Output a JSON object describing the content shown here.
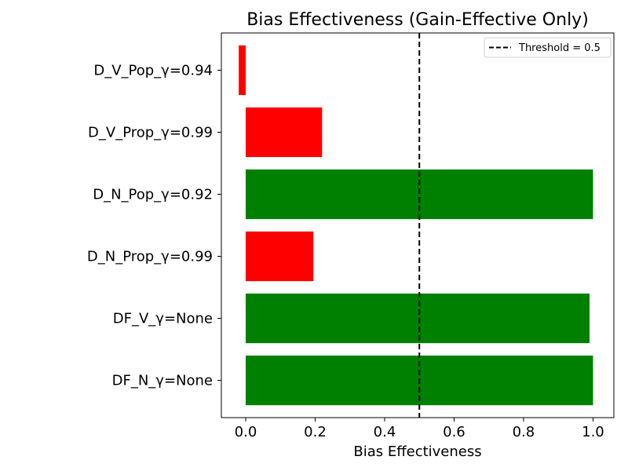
{
  "chart_data": {
    "type": "bar",
    "orientation": "horizontal",
    "title": "Bias Effectiveness (Gain-Effective Only)",
    "xlabel": "Bias Effectiveness",
    "ylabel": "",
    "categories": [
      "D_V_Pop_γ=0.94",
      "D_V_Prop_γ=0.99",
      "D_N_Pop_γ=0.92",
      "D_N_Prop_γ=0.99",
      "DF_V_γ=None",
      "DF_N_γ=None"
    ],
    "values": [
      -0.02,
      0.22,
      1.0,
      0.195,
      0.99,
      1.0
    ],
    "bar_colors": [
      "#ff0000",
      "#ff0000",
      "#008000",
      "#ff0000",
      "#008000",
      "#008000"
    ],
    "xlim": [
      -0.07,
      1.06
    ],
    "xticks": [
      0.0,
      0.2,
      0.4,
      0.6,
      0.8,
      1.0
    ],
    "xtick_labels": [
      "0.0",
      "0.2",
      "0.4",
      "0.6",
      "0.8",
      "1.0"
    ],
    "threshold": {
      "value": 0.5,
      "label": "Threshold = 0.5",
      "color": "#000000",
      "style": "dashed"
    },
    "legend": {
      "placement": "top-right",
      "entries": [
        "Threshold = 0.5"
      ]
    },
    "grid": false
  }
}
